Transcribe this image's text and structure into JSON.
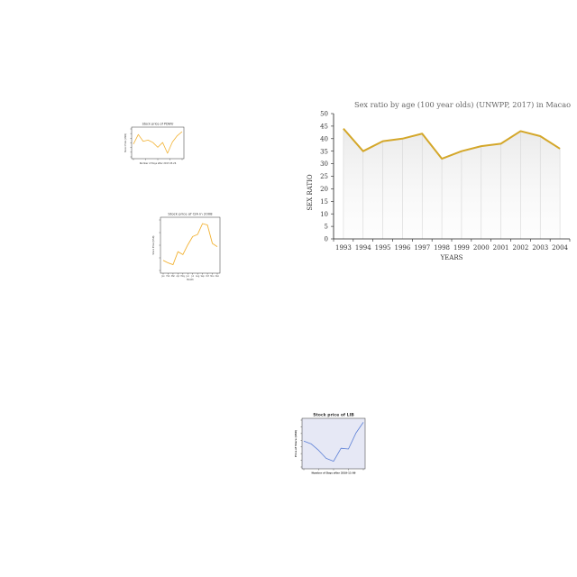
{
  "chart_data": [
    {
      "type": "line",
      "title": "Stock price of PDWU",
      "xlabel": "Number of Days after 2017-05-26",
      "ylabel": "Stock Price (USD)",
      "color": "#f2b233",
      "y_ticks": [
        "",
        "",
        "",
        "",
        "",
        "",
        ""
      ],
      "x_ticks": [
        "",
        "",
        "",
        "",
        ""
      ],
      "x": [
        0,
        1,
        2,
        3,
        4,
        5,
        6,
        7,
        8,
        9,
        10
      ],
      "values": [
        3.2,
        5.6,
        3.9,
        4.2,
        3.6,
        2.4,
        3.6,
        0.9,
        3.7,
        5.3,
        6.3
      ],
      "ylim": [
        0,
        7
      ],
      "xlim": [
        0,
        10
      ]
    },
    {
      "type": "line",
      "title": "Stock price of CIA in 2008",
      "xlabel": "Month",
      "ylabel": "Stock Price (USD)",
      "color": "#f2b233",
      "categories": [
        "Jan",
        "Feb",
        "Mar",
        "Apr",
        "May",
        "Jun",
        "Jul",
        "Aug",
        "Sep",
        "Oct",
        "Nov",
        "Dec"
      ],
      "values": [
        4.8,
        4.1,
        3.6,
        7.2,
        6.4,
        9.1,
        11.4,
        12.0,
        15.0,
        14.6,
        9.5,
        8.6
      ],
      "y_ticks": [
        "",
        "",
        "",
        "",
        ""
      ],
      "ylim": [
        2,
        16
      ]
    },
    {
      "type": "line",
      "title": "Sex ratio by age (100 year olds) (UNWPP, 2017) in Macao",
      "xlabel": "YEARS",
      "ylabel": "SEX RATIO",
      "color": "#d4a72a",
      "categories": [
        "1993",
        "1994",
        "1995",
        "1996",
        "1997",
        "1998",
        "1999",
        "2000",
        "2001",
        "2002",
        "2003",
        "2004"
      ],
      "values": [
        44,
        35,
        39,
        40,
        42,
        32,
        35,
        37,
        38,
        43,
        41,
        36
      ],
      "y_ticks": [
        "0",
        "5",
        "10",
        "15",
        "20",
        "25",
        "30",
        "35",
        "40",
        "45",
        "50"
      ],
      "ylim": [
        0,
        50
      ],
      "grid": true
    },
    {
      "type": "line",
      "title": "Stock price of LIB",
      "xlabel": "Number of Days after 2019-11-09",
      "ylabel": "Price of Share (USD)",
      "color": "#5b7fd6",
      "background": "#e6e8f5",
      "x": [
        0,
        1,
        2,
        3,
        4,
        5,
        6,
        7,
        8
      ],
      "values": [
        4.6,
        4.2,
        3.3,
        2.2,
        1.8,
        3.6,
        3.5,
        5.7,
        7.2
      ],
      "y_ticks": [
        "",
        "",
        "",
        "",
        "",
        "",
        "",
        ""
      ],
      "x_ticks": [
        "",
        "",
        "",
        "",
        ""
      ],
      "ylim": [
        1,
        7.5
      ],
      "xlim": [
        0,
        8
      ]
    }
  ]
}
